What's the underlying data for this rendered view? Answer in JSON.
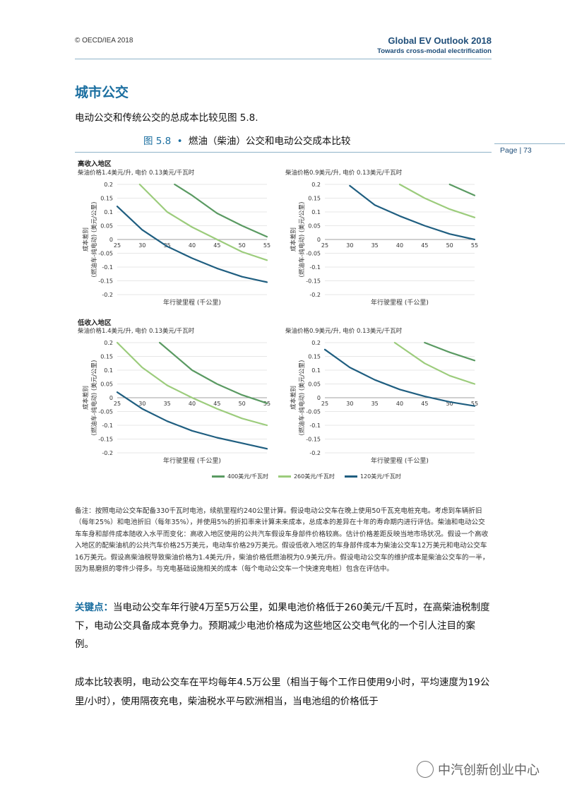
{
  "header": {
    "copyright": "© OECD/IEA 2018",
    "report_title": "Global EV Outlook 2018",
    "report_subtitle": "Towards cross-modal electrification"
  },
  "page": {
    "label": "Page | 73"
  },
  "section_title": "城市公交",
  "intro": "电动公交和传统公交的总成本比较见图 5.8.",
  "figure": {
    "number": "图 5.8",
    "bullet": "•",
    "title": "燃油（柴油）公交和电动公交成本比较",
    "group_high": "高收入地区",
    "group_low": "低收入地区",
    "ylabel_line1": "成本差别",
    "ylabel_line2": "(燃油车-纯电动) (美元/公里)",
    "xlabel": "年行驶里程 (千公里)"
  },
  "legend": [
    {
      "name": "400美元/千瓦时",
      "color": "#5a9a62"
    },
    {
      "name": "260美元/千瓦时",
      "color": "#9ccc7c"
    },
    {
      "name": "120美元/千瓦时",
      "color": "#1f5e80"
    }
  ],
  "chart_data": [
    {
      "type": "line",
      "group": "高收入地区",
      "subtitle": "柴油价格1.4美元/升, 电价 0.13美元/千瓦时",
      "xlabel": "年行驶里程 (千公里)",
      "ylabel": "成本差别 (燃油车-纯电动) (美元/公里)",
      "xlim": [
        25,
        55
      ],
      "ylim": [
        -0.2,
        0.2
      ],
      "xticks": [
        25,
        30,
        35,
        40,
        45,
        50,
        55
      ],
      "yticks": [
        0.2,
        0.15,
        0.1,
        0.05,
        0,
        -0.05,
        -0.1,
        -0.15,
        -0.2
      ],
      "series": [
        {
          "name": "400美元/千瓦时",
          "x": [
            36.5,
            40,
            45,
            50,
            55
          ],
          "y": [
            0.2,
            0.16,
            0.095,
            0.05,
            0.01
          ]
        },
        {
          "name": "260美元/千瓦时",
          "x": [
            29.5,
            35,
            40,
            45,
            50,
            55
          ],
          "y": [
            0.2,
            0.1,
            0.045,
            0.0,
            -0.045,
            -0.075
          ]
        },
        {
          "name": "120美元/千瓦时",
          "x": [
            25,
            30,
            35,
            40,
            45,
            50,
            55
          ],
          "y": [
            0.12,
            0.035,
            -0.025,
            -0.068,
            -0.105,
            -0.135,
            -0.155
          ]
        }
      ]
    },
    {
      "type": "line",
      "group": "高收入地区",
      "subtitle": "柴油价格0.9美元/升, 电价 0.13美元/千瓦时",
      "xlabel": "年行驶里程 (千公里)",
      "ylabel": "成本差别 (燃油车-纯电动) (美元/公里)",
      "xlim": [
        25,
        55
      ],
      "ylim": [
        -0.2,
        0.2
      ],
      "xticks": [
        25,
        30,
        35,
        40,
        45,
        50,
        55
      ],
      "yticks": [
        0.2,
        0.15,
        0.1,
        0.05,
        0,
        -0.05,
        -0.1,
        -0.15,
        -0.2
      ],
      "series": [
        {
          "name": "400美元/千瓦时",
          "x": [
            50,
            55
          ],
          "y": [
            0.2,
            0.16
          ]
        },
        {
          "name": "260美元/千瓦时",
          "x": [
            40,
            45,
            50,
            55
          ],
          "y": [
            0.2,
            0.15,
            0.11,
            0.08
          ]
        },
        {
          "name": "120美元/千瓦时",
          "x": [
            30,
            35,
            40,
            45,
            50,
            55
          ],
          "y": [
            0.195,
            0.125,
            0.085,
            0.05,
            0.02,
            0.0
          ]
        }
      ]
    },
    {
      "type": "line",
      "group": "低收入地区",
      "subtitle": "柴油价格1.4美元/升, 电价 0.13美元/千瓦时",
      "xlabel": "年行驶里程 (千公里)",
      "ylabel": "成本差别 (燃油车-纯电动) (美元/公里)",
      "xlim": [
        25,
        55
      ],
      "ylim": [
        -0.2,
        0.2
      ],
      "xticks": [
        25,
        30,
        35,
        40,
        45,
        50,
        55
      ],
      "yticks": [
        0.2,
        0.15,
        0.1,
        0.05,
        0,
        -0.05,
        -0.1,
        -0.15,
        -0.2
      ],
      "series": [
        {
          "name": "400美元/千瓦时",
          "x": [
            33.5,
            40,
            45,
            50,
            55
          ],
          "y": [
            0.2,
            0.1,
            0.05,
            0.01,
            -0.02
          ]
        },
        {
          "name": "260美元/千瓦时",
          "x": [
            25,
            30,
            35,
            40,
            45,
            50,
            55
          ],
          "y": [
            0.2,
            0.11,
            0.045,
            0.0,
            -0.04,
            -0.075,
            -0.1
          ]
        },
        {
          "name": "120美元/千瓦时",
          "x": [
            25,
            30,
            35,
            40,
            45,
            50,
            55
          ],
          "y": [
            0.02,
            -0.04,
            -0.085,
            -0.12,
            -0.145,
            -0.165,
            -0.185
          ]
        }
      ]
    },
    {
      "type": "line",
      "group": "低收入地区",
      "subtitle": "柴油价格0.9美元/升, 电价 0.13美元/千瓦时",
      "xlabel": "年行驶里程 (千公里)",
      "ylabel": "成本差别 (燃油车-纯电动) (美元/公里)",
      "xlim": [
        25,
        55
      ],
      "ylim": [
        -0.2,
        0.2
      ],
      "xticks": [
        25,
        30,
        35,
        40,
        45,
        50,
        55
      ],
      "yticks": [
        0.2,
        0.15,
        0.1,
        0.05,
        0,
        -0.05,
        -0.1,
        -0.15,
        -0.2
      ],
      "series": [
        {
          "name": "400美元/千瓦时",
          "x": [
            45,
            50,
            55
          ],
          "y": [
            0.2,
            0.165,
            0.135
          ]
        },
        {
          "name": "260美元/千瓦时",
          "x": [
            39,
            45,
            50,
            55
          ],
          "y": [
            0.2,
            0.125,
            0.08,
            0.05
          ]
        },
        {
          "name": "120美元/千瓦时",
          "x": [
            25,
            30,
            35,
            40,
            45,
            50,
            55
          ],
          "y": [
            0.175,
            0.11,
            0.065,
            0.03,
            0.005,
            -0.015,
            -0.03
          ]
        }
      ]
    }
  ],
  "note": "备注：按照电动公交车配备330千瓦时电池，续航里程约240公里计算。假设电动公交车在晚上使用50千瓦充电桩充电。考虑到车辆折旧（每年25%）和电池折旧（每年35%），并使用5%的折扣率来计算未来成本，总成本的差异在十年的寿命期内进行评估。柴油和电动公交车车身和部件成本随收入水平而变化：高收入地区使用的公共汽车假设车身部件价格较高。估计价格差距反映当地市场状况。假设一个高收入地区的配柴油机的公共汽车价格25万美元，电动车价格29万美元。假设低收入地区的车身部件成本为柴油公交车12万美元和电动公交车16万美元。假设高柴油税导致柴油价格为1.4美元/升，柴油价格低燃油税为0.9美元/升。假设电动公交车的维护成本是柴油公交车的一半，因为易磨损的零件少得多。与充电基础设施相关的成本（每个电动公交车一个快速充电桩）包含在评估中。",
  "key_point": {
    "label": "关键点：",
    "text": "当电动公交车年行驶4万至5万公里，如果电池价格低于260美元/千瓦时，在高柴油税制度下，电动公交具备成本竞争力。预期减少电池价格成为这些地区公交电气化的一个引人注目的案例。"
  },
  "body_text": "成本比较表明，电动公交车在平均每年4.5万公里（相当于每个工作日使用9小时，平均速度为19公里/小时），使用隔夜充电，柴油税水平与欧洲相当，当电池组的价格低于",
  "watermark": "中汽创新创业中心"
}
